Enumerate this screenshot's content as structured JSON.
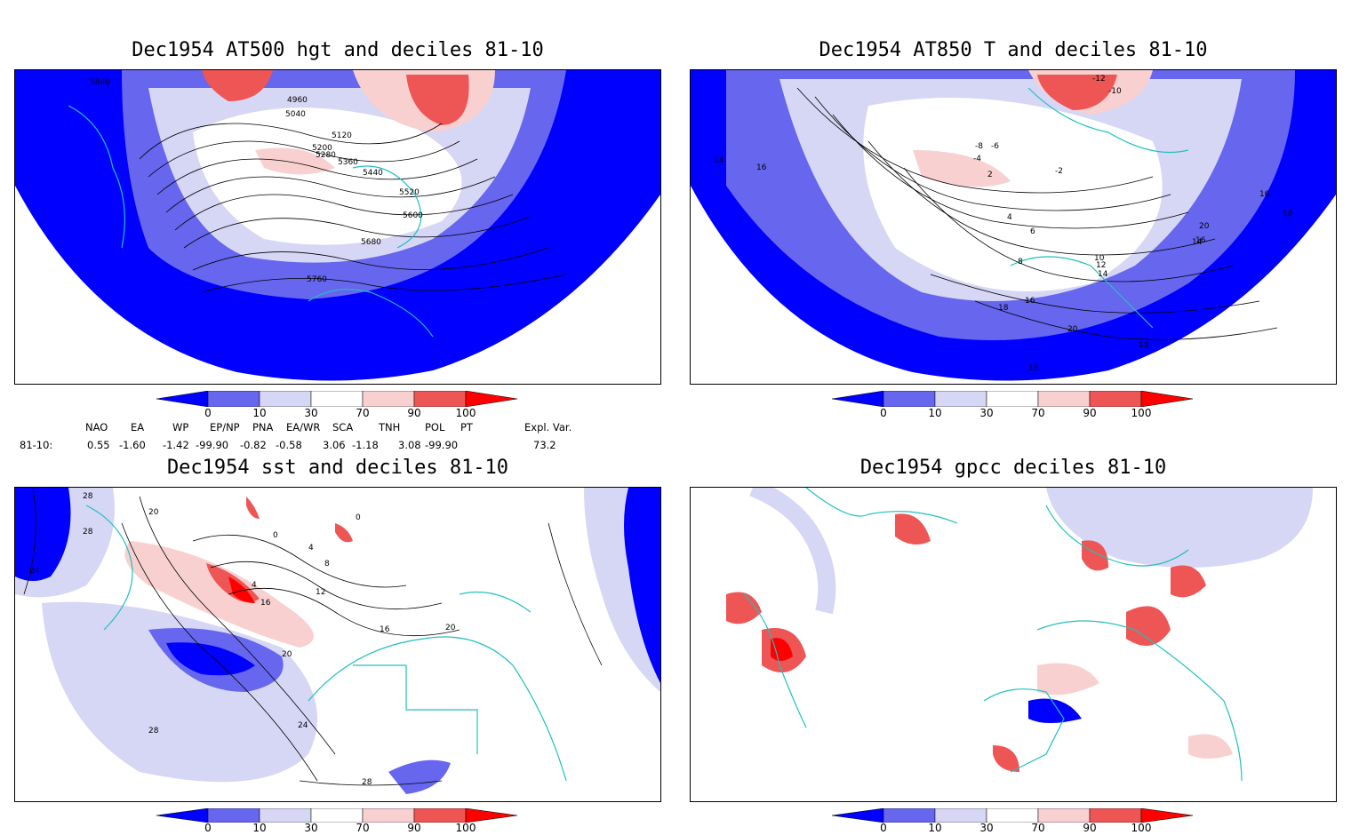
{
  "panels": [
    {
      "title": "Dec1954 AT500 hgt and deciles 81-10",
      "contour_labels": [
        "5840",
        "4960",
        "5040",
        "5120",
        "5200",
        "5280",
        "5360",
        "5440",
        "5520",
        "5600",
        "5680",
        "5760"
      ]
    },
    {
      "title": "Dec1954 AT850 T and deciles 81-10",
      "contour_labels": [
        "14",
        "16",
        "-12",
        "-10",
        "-8",
        "-6",
        "-4",
        "-2",
        "2",
        "4",
        "6",
        "8",
        "10",
        "12",
        "14",
        "16",
        "18",
        "20",
        "16",
        "14",
        "16",
        "18",
        "20",
        "18",
        "16"
      ]
    },
    {
      "title": "Dec1954 sst and deciles 81-10",
      "contour_labels": [
        "28",
        "28",
        "20",
        "24",
        "0",
        "0",
        "4",
        "8",
        "4",
        "12",
        "16",
        "16",
        "20",
        "20",
        "24",
        "28",
        "28"
      ]
    },
    {
      "title": "Dec1954 gpcc deciles 81-10",
      "contour_labels": []
    }
  ],
  "colorbar": {
    "ticks": [
      "0",
      "10",
      "30",
      "70",
      "90",
      "100"
    ],
    "colors": {
      "below_0": "#0000ff",
      "0_10": "#6666ee",
      "10_30": "#d6d6f5",
      "30_70": "#ffffff",
      "70_90": "#f8d0d0",
      "90_100": "#ee5555",
      "above_100": "#ff0000"
    }
  },
  "indices": {
    "headers": [
      "NAO",
      "EA",
      "WP",
      "EP/NP",
      "PNA",
      "EA/WR",
      "SCA",
      "TNH",
      "POL",
      "PT",
      "Expl. Var."
    ],
    "row_label": "81-10:",
    "values": [
      "0.55",
      "-1.60",
      "-1.42",
      "-99.90",
      "-0.82",
      "-0.58",
      "3.06",
      "-1.18",
      "3.08",
      "-99.90",
      "73.2"
    ]
  },
  "colors": {
    "coastline": "#20c0c0",
    "strong_blue": "#0000ff",
    "light_blue": "#d6d6f5",
    "mid_blue": "#6666ee",
    "light_red": "#f8d0d0",
    "mid_red": "#ee5555",
    "strong_red": "#ff0000"
  }
}
